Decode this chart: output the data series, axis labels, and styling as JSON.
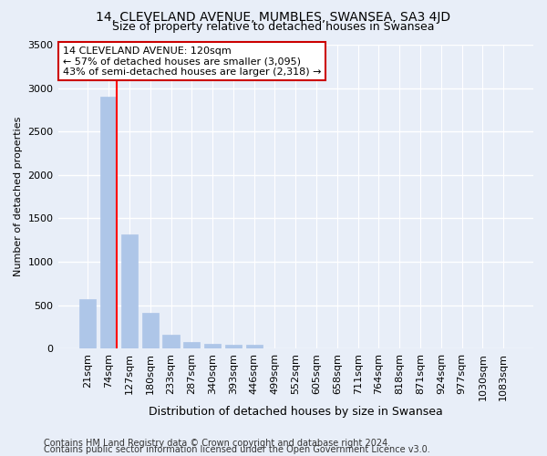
{
  "title1": "14, CLEVELAND AVENUE, MUMBLES, SWANSEA, SA3 4JD",
  "title2": "Size of property relative to detached houses in Swansea",
  "xlabel": "Distribution of detached houses by size in Swansea",
  "ylabel": "Number of detached properties",
  "categories": [
    "21sqm",
    "74sqm",
    "127sqm",
    "180sqm",
    "233sqm",
    "287sqm",
    "340sqm",
    "393sqm",
    "446sqm",
    "499sqm",
    "552sqm",
    "605sqm",
    "658sqm",
    "711sqm",
    "764sqm",
    "818sqm",
    "871sqm",
    "924sqm",
    "977sqm",
    "1030sqm",
    "1083sqm"
  ],
  "values": [
    570,
    2900,
    1310,
    410,
    155,
    75,
    50,
    40,
    40,
    0,
    0,
    0,
    0,
    0,
    0,
    0,
    0,
    0,
    0,
    0,
    0
  ],
  "bar_color": "#aec6e8",
  "bar_edge_color": "#aec6e8",
  "red_line_bar_index": 1,
  "annotation_text": "14 CLEVELAND AVENUE: 120sqm\n← 57% of detached houses are smaller (3,095)\n43% of semi-detached houses are larger (2,318) →",
  "annotation_box_color": "#ffffff",
  "annotation_box_edge": "#cc0000",
  "background_color": "#e8eef8",
  "plot_bg_color": "#e8eef8",
  "grid_color": "#ffffff",
  "ylim": [
    0,
    3500
  ],
  "yticks": [
    0,
    500,
    1000,
    1500,
    2000,
    2500,
    3000,
    3500
  ],
  "footer1": "Contains HM Land Registry data © Crown copyright and database right 2024.",
  "footer2": "Contains public sector information licensed under the Open Government Licence v3.0.",
  "title1_fontsize": 10,
  "title2_fontsize": 9,
  "xlabel_fontsize": 9,
  "ylabel_fontsize": 8,
  "tick_fontsize": 8,
  "annotation_fontsize": 8,
  "footer_fontsize": 7
}
